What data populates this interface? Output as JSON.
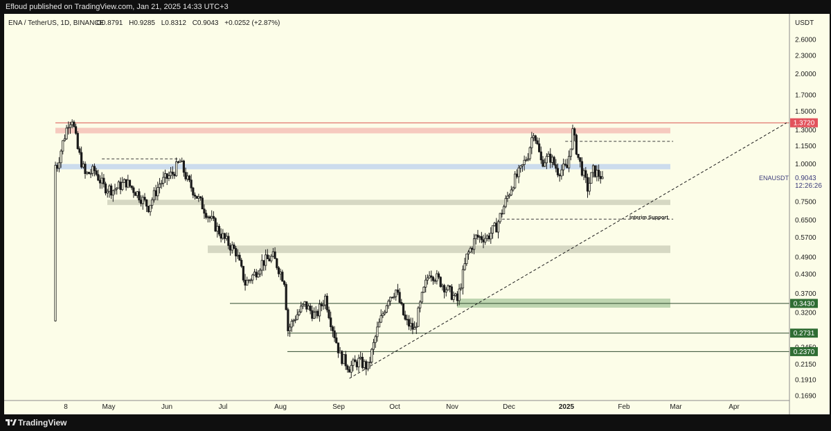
{
  "header": {
    "published": "Efloud published on TradingView.com, Jan 21, 2025 14:33 UTC+3"
  },
  "footer": {
    "brand": "TradingView"
  },
  "legend": {
    "symbol": "ENA / TetherUS, 1D, BINANCE",
    "open": "O0.8791",
    "high": "H0.9285",
    "low": "L0.8312",
    "close": "C0.9043",
    "change": "+0.0252 (+2.87%)"
  },
  "price_scale": {
    "currency": "USDT",
    "ticks": [
      "2.6000",
      "2.3000",
      "2.0000",
      "1.7000",
      "1.5000",
      "1.3000",
      "1.1500",
      "1.0000",
      "0.7500",
      "0.6500",
      "0.5700",
      "0.4900",
      "0.4300",
      "0.3700",
      "0.3200",
      "0.2450",
      "0.2150",
      "0.1910",
      "0.1690"
    ],
    "current_price": "0.9043",
    "countdown": "12:26:26",
    "symbol_tag": "ENAUSDT"
  },
  "time_axis": {
    "labels": [
      "8",
      "May",
      "Jun",
      "Jul",
      "Aug",
      "Sep",
      "Oct",
      "Nov",
      "Dec",
      "2025",
      "Feb",
      "Mar",
      "Apr"
    ]
  },
  "annotations": {
    "interim_support": "Interim Support"
  },
  "colors": {
    "background": "#fcfde8",
    "candle": "#1a1a1a",
    "resistance_zone": "#f4b8b2",
    "blue_zone": "#bcd0ef",
    "gray_zone": "#c9cbb7",
    "green_zone": "#a9c79e",
    "red_label": "#e2525c",
    "green_label": "#2f6d33",
    "line": "#3a3a3a"
  },
  "chart_data": {
    "type": "candlestick",
    "y_scale": "log",
    "ylim": [
      0.169,
      2.9
    ],
    "x_range": [
      "2024-04-02",
      "2025-04-30"
    ],
    "horizontal_levels": [
      {
        "label": "1.3720",
        "value": 1.372,
        "color": "#e2525c"
      },
      {
        "label": "0.3430",
        "value": 0.343,
        "color": "#2f6d33"
      },
      {
        "label": "0.2731",
        "value": 0.2731,
        "color": "#2f6d33"
      },
      {
        "label": "0.2370",
        "value": 0.237,
        "color": "#2f6d33"
      }
    ],
    "zones": [
      {
        "name": "resistance",
        "low": 1.265,
        "high": 1.32,
        "color": "#f4b8b2"
      },
      {
        "name": "range",
        "low": 0.96,
        "high": 1.0,
        "color": "#bcd0ef"
      },
      {
        "name": "support-1",
        "low": 0.73,
        "high": 0.76,
        "color": "#c9cbb7"
      },
      {
        "name": "support-2",
        "low": 0.505,
        "high": 0.535,
        "color": "#c9cbb7"
      },
      {
        "name": "support-3",
        "low": 0.332,
        "high": 0.356,
        "color": "#a9c79e"
      }
    ],
    "dashed_levels": [
      {
        "value": 1.04,
        "from": "2024-04-27",
        "to": "2024-06-08"
      },
      {
        "value": 1.19,
        "from": "2025-01-01",
        "to": "2025-02-28"
      },
      {
        "value": 0.655,
        "from": "2024-11-28",
        "to": "2025-02-28",
        "label": "Interim Support"
      }
    ],
    "trendline": {
      "from": {
        "date": "2024-09-07",
        "price": 0.193
      },
      "to": {
        "date": "2025-04-30",
        "price": 1.372
      }
    },
    "ohlc_anchors": [
      [
        "2024-04-02",
        0.3
      ],
      [
        "2024-04-03",
        0.99
      ],
      [
        "2024-04-06",
        1.18
      ],
      [
        "2024-04-09",
        1.38
      ],
      [
        "2024-04-11",
        1.42
      ],
      [
        "2024-04-14",
        1.12
      ],
      [
        "2024-04-18",
        0.92
      ],
      [
        "2024-04-23",
        0.95
      ],
      [
        "2024-04-28",
        0.84
      ],
      [
        "2024-05-03",
        0.82
      ],
      [
        "2024-05-10",
        0.87
      ],
      [
        "2024-05-16",
        0.8
      ],
      [
        "2024-05-22",
        0.72
      ],
      [
        "2024-05-28",
        0.86
      ],
      [
        "2024-06-04",
        0.93
      ],
      [
        "2024-06-08",
        1.02
      ],
      [
        "2024-06-12",
        0.88
      ],
      [
        "2024-06-17",
        0.78
      ],
      [
        "2024-06-24",
        0.66
      ],
      [
        "2024-07-02",
        0.56
      ],
      [
        "2024-07-08",
        0.51
      ],
      [
        "2024-07-13",
        0.4
      ],
      [
        "2024-07-18",
        0.43
      ],
      [
        "2024-07-22",
        0.47
      ],
      [
        "2024-07-28",
        0.49
      ],
      [
        "2024-08-03",
        0.41
      ],
      [
        "2024-08-05",
        0.28
      ],
      [
        "2024-08-09",
        0.31
      ],
      [
        "2024-08-14",
        0.34
      ],
      [
        "2024-08-20",
        0.31
      ],
      [
        "2024-08-25",
        0.36
      ],
      [
        "2024-08-28",
        0.3
      ],
      [
        "2024-09-02",
        0.23
      ],
      [
        "2024-09-07",
        0.21
      ],
      [
        "2024-09-12",
        0.22
      ],
      [
        "2024-09-17",
        0.21
      ],
      [
        "2024-09-22",
        0.28
      ],
      [
        "2024-09-28",
        0.36
      ],
      [
        "2024-10-02",
        0.38
      ],
      [
        "2024-10-07",
        0.3
      ],
      [
        "2024-10-12",
        0.28
      ],
      [
        "2024-10-16",
        0.36
      ],
      [
        "2024-10-20",
        0.44
      ],
      [
        "2024-10-25",
        0.41
      ],
      [
        "2024-10-30",
        0.38
      ],
      [
        "2024-11-04",
        0.35
      ],
      [
        "2024-11-09",
        0.49
      ],
      [
        "2024-11-14",
        0.57
      ],
      [
        "2024-11-20",
        0.57
      ],
      [
        "2024-11-25",
        0.62
      ],
      [
        "2024-11-30",
        0.75
      ],
      [
        "2024-12-04",
        0.87
      ],
      [
        "2024-12-08",
        0.95
      ],
      [
        "2024-12-12",
        1.08
      ],
      [
        "2024-12-15",
        1.3
      ],
      [
        "2024-12-19",
        1.02
      ],
      [
        "2024-12-24",
        1.05
      ],
      [
        "2024-12-28",
        0.95
      ],
      [
        "2025-01-02",
        0.97
      ],
      [
        "2025-01-05",
        1.28
      ],
      [
        "2025-01-08",
        1.05
      ],
      [
        "2025-01-13",
        0.83
      ],
      [
        "2025-01-16",
        0.95
      ],
      [
        "2025-01-21",
        0.9043
      ]
    ]
  }
}
